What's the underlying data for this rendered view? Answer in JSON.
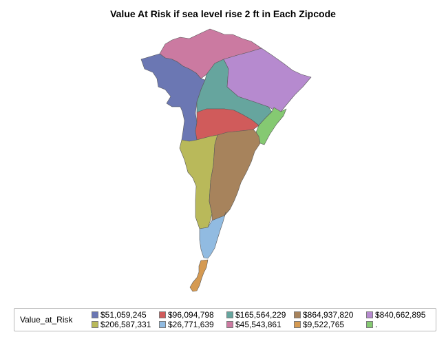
{
  "title": "Value At Risk if sea level rise 2 ft in Each Zipcode",
  "legend": {
    "title": "Value_at_Risk",
    "items": [
      {
        "label": "$51,059,245",
        "color": "#6b77b3"
      },
      {
        "label": "$96,094,798",
        "color": "#d05b5b"
      },
      {
        "label": "$165,564,229",
        "color": "#66a59e"
      },
      {
        "label": "$864,937,820",
        "color": "#a7835c"
      },
      {
        "label": "$840,662,895",
        "color": "#b68acf"
      },
      {
        "label": "$206,587,331",
        "color": "#b9b95a"
      },
      {
        "label": "$26,771,639",
        "color": "#91bbe1"
      },
      {
        "label": "$45,543,861",
        "color": "#cb7aa1"
      },
      {
        "label": "$9,522,765",
        "color": "#d59a52"
      },
      {
        "label": ".",
        "color": "#85c972"
      }
    ]
  }
}
